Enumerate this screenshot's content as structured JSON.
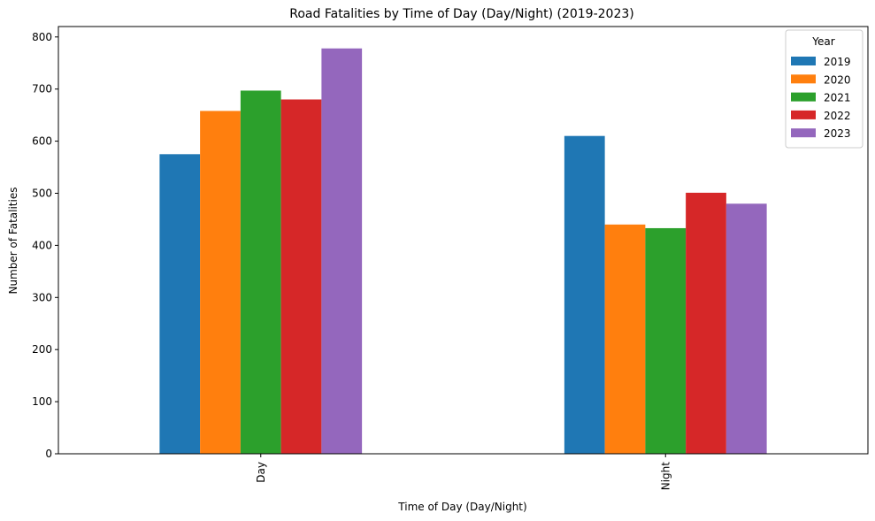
{
  "chart_data": {
    "type": "bar",
    "title": "Road Fatalities by Time of Day (Day/Night) (2019-2023)",
    "xlabel": "Time of Day (Day/Night)",
    "ylabel": "Number of Fatalities",
    "categories": [
      "Day",
      "Night"
    ],
    "series": [
      {
        "name": "2019",
        "color": "#1f77b4",
        "values": [
          575,
          610
        ]
      },
      {
        "name": "2020",
        "color": "#ff7f0e",
        "values": [
          658,
          440
        ]
      },
      {
        "name": "2021",
        "color": "#2ca02c",
        "values": [
          697,
          433
        ]
      },
      {
        "name": "2022",
        "color": "#d62728",
        "values": [
          680,
          501
        ]
      },
      {
        "name": "2023",
        "color": "#9467bd",
        "values": [
          778,
          480
        ]
      }
    ],
    "ylim": [
      0,
      820
    ],
    "yticks": [
      0,
      100,
      200,
      300,
      400,
      500,
      600,
      700,
      800
    ],
    "legend": {
      "title": "Year",
      "placement": "top-right"
    },
    "grid": false
  }
}
